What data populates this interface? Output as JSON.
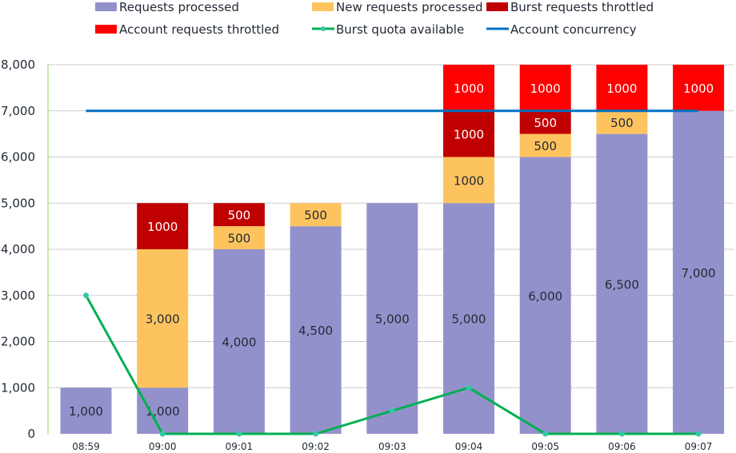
{
  "chart_data": {
    "type": "bar",
    "stacked": true,
    "title": "",
    "xlabel": "",
    "ylabel": "",
    "ylim": [
      0,
      8000
    ],
    "yticks": [
      0,
      1000,
      2000,
      3000,
      4000,
      5000,
      6000,
      7000,
      8000
    ],
    "ytick_labels": [
      "0",
      "1,000",
      "2,000",
      "3,000",
      "4,000",
      "5,000",
      "6,000",
      "7,000",
      "8,000"
    ],
    "grid": true,
    "legend_position": "top",
    "categories": [
      "08:59",
      "09:00",
      "09:01",
      "09:02",
      "09:03",
      "09:04",
      "09:05",
      "09:06",
      "09:07"
    ],
    "series": [
      {
        "name": "Requests processed",
        "kind": "bar",
        "color": "#9391cb",
        "values": [
          1000,
          1000,
          4000,
          4500,
          5000,
          5000,
          6000,
          6500,
          7000
        ],
        "labels": [
          "1,000",
          "1,000",
          "4,000",
          "4,500",
          "5,000",
          "5,000",
          "6,000",
          "6,500",
          "7,000"
        ],
        "label_color": "#222a35"
      },
      {
        "name": "New requests processed",
        "kind": "bar",
        "color": "#fdc35f",
        "values": [
          0,
          3000,
          500,
          500,
          0,
          1000,
          500,
          500,
          0
        ],
        "labels": [
          "",
          "3,000",
          "500",
          "500",
          "",
          "1000",
          "500",
          "500",
          ""
        ],
        "label_color": "#222a35"
      },
      {
        "name": "Burst requests throttled",
        "kind": "bar",
        "color": "#c00000",
        "values": [
          0,
          1000,
          500,
          0,
          0,
          1000,
          500,
          0,
          0
        ],
        "labels": [
          "",
          "1000",
          "500",
          "",
          "",
          "1000",
          "500",
          "",
          ""
        ],
        "label_color": "#ffffff"
      },
      {
        "name": "Account requests throttled",
        "kind": "bar",
        "color": "#ff0000",
        "values": [
          0,
          0,
          0,
          0,
          0,
          1000,
          1000,
          1000,
          1000
        ],
        "labels": [
          "",
          "",
          "",
          "",
          "",
          "1000",
          "1000",
          "1000",
          "1000"
        ],
        "label_color": "#ffffff"
      },
      {
        "name": "Burst quota available",
        "kind": "line",
        "color": "#00b050",
        "marker_color": "#36c6a8",
        "values": [
          3000,
          0,
          0,
          0,
          500,
          1000,
          0,
          0,
          0
        ]
      },
      {
        "name": "Account concurrency",
        "kind": "line",
        "color": "#0070c0",
        "values": [
          7000,
          7000,
          7000,
          7000,
          7000,
          7000,
          7000,
          7000,
          7000
        ]
      }
    ],
    "legend_rows": [
      [
        "Requests processed",
        "New requests processed",
        "Burst requests throttled"
      ],
      [
        "Account requests throttled",
        "Burst quota available",
        "Account concurrency"
      ]
    ]
  }
}
